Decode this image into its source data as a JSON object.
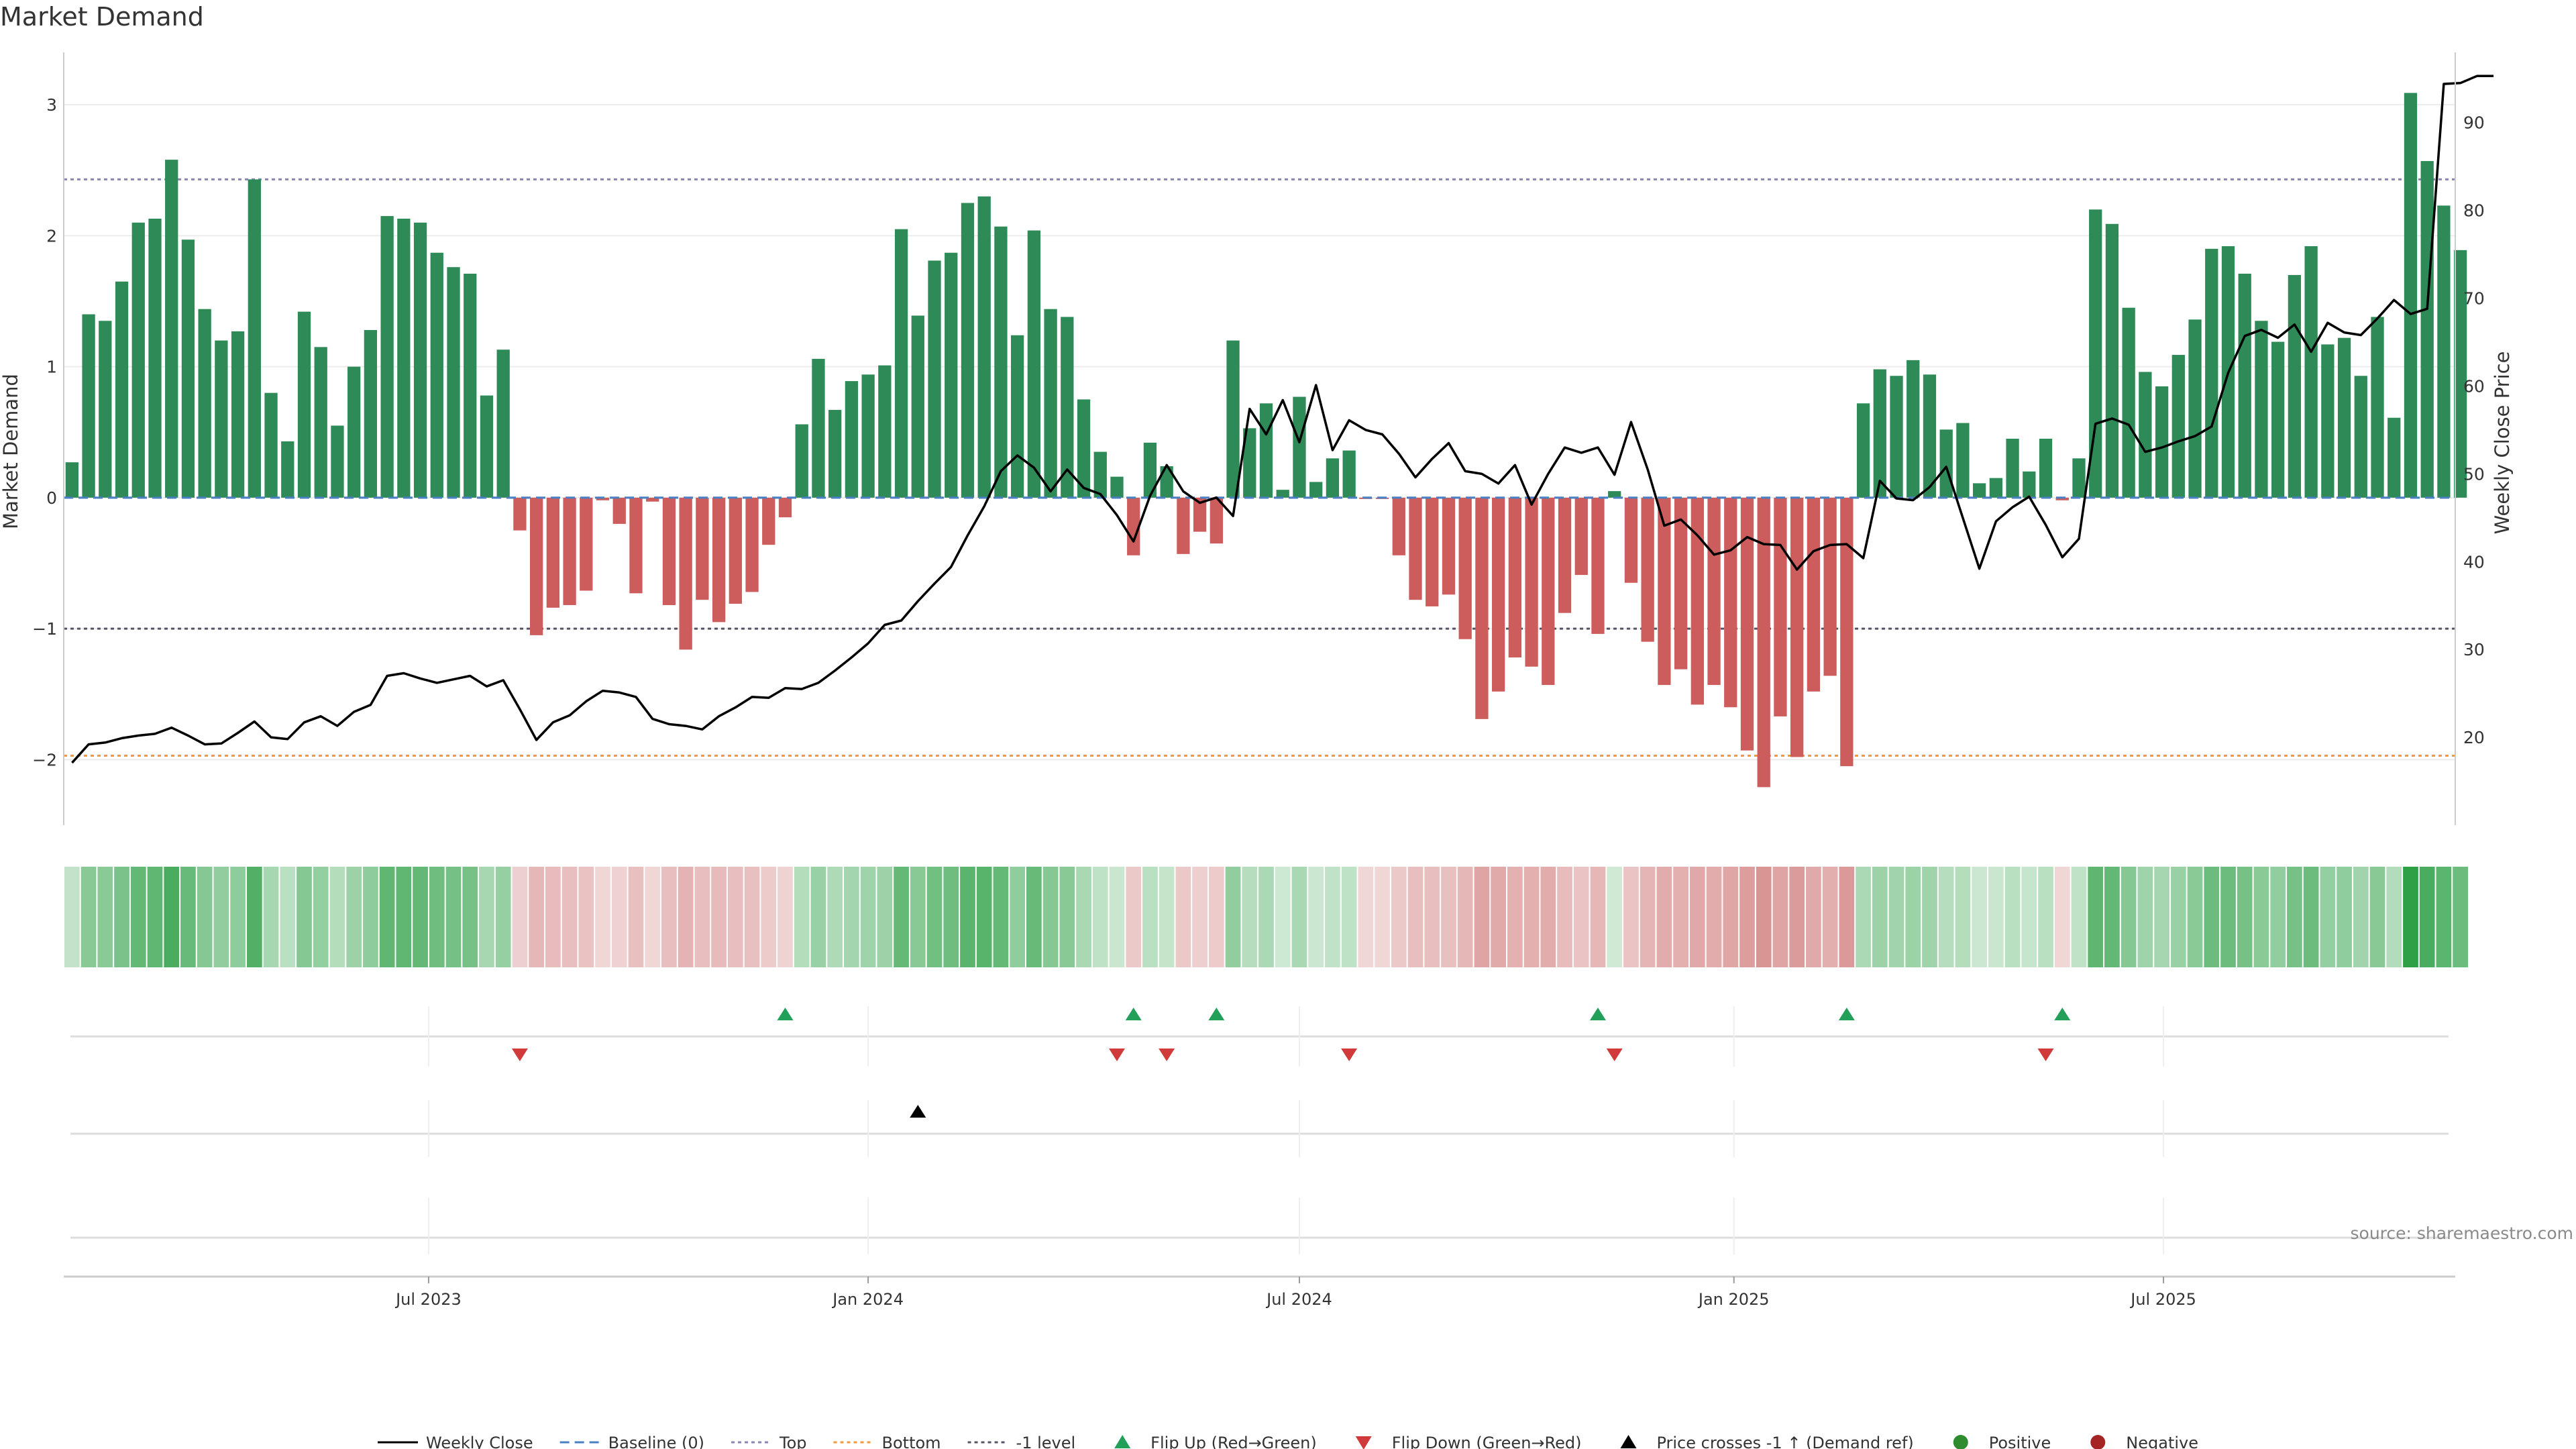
{
  "chart_data": {
    "type": "bar",
    "title": "Market Demand",
    "source": "source: sharemaestro.com",
    "ylabel_left": "Market Demand",
    "ylabel_right": "Weekly Close Price",
    "ylim_left": [
      -2.5,
      3.4
    ],
    "ylim_right": [
      10,
      98
    ],
    "yticks_left": [
      3,
      2,
      1,
      0,
      -1,
      -2
    ],
    "ytick_labels_left": [
      "3",
      "2",
      "1",
      "0",
      "−1",
      "−2"
    ],
    "yticks_right": [
      90,
      80,
      70,
      60,
      50,
      40,
      30,
      20
    ],
    "ytick_labels_right": [
      "90",
      "80",
      "70",
      "60",
      "50",
      "40",
      "30",
      "20"
    ],
    "x_ticks": [
      {
        "label": "Jul 2023",
        "week": 22
      },
      {
        "label": "Jan 2024",
        "week": 48.5
      },
      {
        "label": "Jul 2024",
        "week": 74.5
      },
      {
        "label": "Jan 2025",
        "week": 100.7
      },
      {
        "label": "Jul 2025",
        "week": 126.6
      }
    ],
    "reference_lines": [
      {
        "name": "Top",
        "value": 2.43,
        "color": "#8a86b3"
      },
      {
        "name": "-1 level",
        "value": -1,
        "color": "#555566"
      },
      {
        "name": "Bottom",
        "value": -1.97,
        "color": "#f09a3e"
      },
      {
        "name": "Baseline (0)",
        "value": 0,
        "color": "#4a7fc1"
      }
    ],
    "demand": [
      0.27,
      1.4,
      1.35,
      1.65,
      2.1,
      2.13,
      2.58,
      1.97,
      1.44,
      1.2,
      1.27,
      2.43,
      0.8,
      0.43,
      1.42,
      1.15,
      0.55,
      1.0,
      1.28,
      2.15,
      2.13,
      2.1,
      1.87,
      1.76,
      1.71,
      0.78,
      1.13,
      -0.25,
      -1.05,
      -0.84,
      -0.82,
      -0.71,
      -0.02,
      -0.2,
      -0.73,
      -0.03,
      -0.82,
      -1.16,
      -0.78,
      -0.95,
      -0.81,
      -0.72,
      -0.36,
      -0.15,
      0.56,
      1.06,
      0.67,
      0.89,
      0.94,
      1.01,
      2.05,
      1.39,
      1.81,
      1.87,
      2.25,
      2.3,
      2.07,
      1.24,
      2.04,
      1.44,
      1.38,
      0.75,
      0.35,
      0.16,
      -0.44,
      0.42,
      0.24,
      -0.43,
      -0.26,
      -0.35,
      1.2,
      0.53,
      0.72,
      0.06,
      0.77,
      0.12,
      0.3,
      0.36,
      -0.01,
      -0.01,
      -0.44,
      -0.78,
      -0.83,
      -0.74,
      -1.08,
      -1.69,
      -1.48,
      -1.22,
      -1.29,
      -1.43,
      -0.88,
      -0.59,
      -1.04,
      0.05,
      -0.65,
      -1.1,
      -1.43,
      -1.31,
      -1.58,
      -1.43,
      -1.6,
      -1.93,
      -2.21,
      -1.67,
      -1.98,
      -1.48,
      -1.36,
      -2.05,
      0.72,
      0.98,
      0.93,
      1.05,
      0.94,
      0.52,
      0.57,
      0.11,
      0.15,
      0.45,
      0.2,
      0.45,
      -0.02,
      0.3,
      2.2,
      2.09,
      1.45,
      0.96,
      0.85,
      1.09,
      1.36,
      1.9,
      1.92,
      1.71,
      1.35,
      1.19,
      1.7,
      1.92,
      1.17,
      1.22,
      0.93,
      1.38,
      0.61,
      3.09,
      2.57,
      2.23,
      1.89
    ],
    "close": [
      17.1,
      19.2,
      19.4,
      19.9,
      20.2,
      20.4,
      21.1,
      20.2,
      19.2,
      19.3,
      20.5,
      21.8,
      20.0,
      19.8,
      21.7,
      22.4,
      21.3,
      22.9,
      23.7,
      27.0,
      27.3,
      26.7,
      26.2,
      26.6,
      27.0,
      25.8,
      26.5,
      23.2,
      19.7,
      21.7,
      22.5,
      24.1,
      25.3,
      25.1,
      24.6,
      22.1,
      21.5,
      21.3,
      20.9,
      22.4,
      23.4,
      24.6,
      24.5,
      25.6,
      25.5,
      26.2,
      27.6,
      29.1,
      30.7,
      32.8,
      33.3,
      35.5,
      37.5,
      39.4,
      43.0,
      46.3,
      50.3,
      52.1,
      50.7,
      48.0,
      50.5,
      48.4,
      47.7,
      45.3,
      42.3,
      47.5,
      51.0,
      48.0,
      46.7,
      47.3,
      45.2,
      57.4,
      54.5,
      58.4,
      53.6,
      60.1,
      52.7,
      56.1,
      55.0,
      54.5,
      52.3,
      49.6,
      51.7,
      53.5,
      50.3,
      50.0,
      48.9,
      51.0,
      46.5,
      50.0,
      53.0,
      52.4,
      53.0,
      49.9,
      55.9,
      50.5,
      44.1,
      44.8,
      43.0,
      40.8,
      41.3,
      42.8,
      42.0,
      41.9,
      39.1,
      41.2,
      41.9,
      42.0,
      40.4,
      49.2,
      47.2,
      47.0,
      48.5,
      50.8,
      45.0,
      39.2,
      44.6,
      46.2,
      47.4,
      44.2,
      40.5,
      42.6,
      55.7,
      56.3,
      55.6,
      52.5,
      53.0,
      53.7,
      54.3,
      55.4,
      61.5,
      65.7,
      66.4,
      65.5,
      67.0,
      63.9,
      67.2,
      66.1,
      65.8,
      67.7,
      69.8,
      68.2,
      68.8,
      94.4,
      94.5,
      95.3,
      95.3
    ],
    "flip_up_weeks": [
      43,
      64,
      69,
      92,
      107,
      120
    ],
    "flip_down_weeks": [
      27,
      63,
      66,
      77,
      93,
      119
    ],
    "price_cross_weeks": [
      51
    ],
    "colors": {
      "positive_bar": "#2e8b57",
      "negative_bar": "#cd5c5c",
      "close_line": "#000000",
      "flip_up": "#22a05a",
      "flip_down": "#d03a3a",
      "cross": "#000000",
      "positive_dot": "#2e8b2e",
      "negative_dot": "#a52525",
      "grid": "#ececec",
      "axis": "#cccccc"
    },
    "legend": [
      {
        "label": "Weekly Close",
        "kind": "line-solid",
        "color": "#000000"
      },
      {
        "label": "Baseline (0)",
        "kind": "line-dash",
        "color": "#4a7fc1"
      },
      {
        "label": "Top",
        "kind": "line-dot",
        "color": "#8a86b3"
      },
      {
        "label": "Bottom",
        "kind": "line-dot",
        "color": "#f09a3e"
      },
      {
        "label": "-1 level",
        "kind": "line-dot",
        "color": "#555566"
      },
      {
        "label": "Flip Up (Red→Green)",
        "kind": "tri-up",
        "color": "#22a05a"
      },
      {
        "label": "Flip Down (Green→Red)",
        "kind": "tri-down",
        "color": "#d03a3a"
      },
      {
        "label": "Price crosses -1 ↑ (Demand ref)",
        "kind": "tri-up",
        "color": "#000000"
      },
      {
        "label": "Positive",
        "kind": "dot",
        "color": "#2e8b2e"
      },
      {
        "label": "Negative",
        "kind": "dot",
        "color": "#a52525"
      }
    ]
  }
}
